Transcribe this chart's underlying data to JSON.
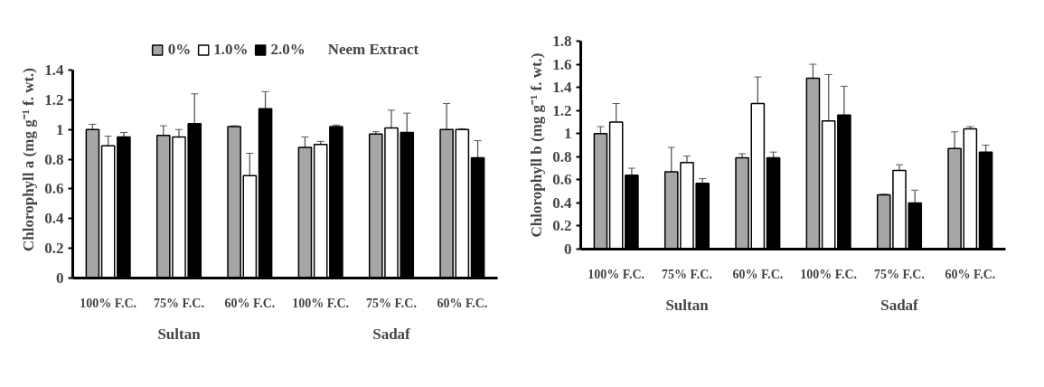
{
  "chart_data": [
    {
      "type": "bar",
      "ylabel": "Chlorophyll a (mg g⁻¹ f. wt.)",
      "categories": [
        "100% F.C.",
        "75% F.C.",
        "60% F.C.",
        "100% F.C.",
        "75% F.C.",
        "60% F.C."
      ],
      "annotations": [
        "Sultan",
        "Sadaf"
      ],
      "legend": "top",
      "legend_title": "Neem Extract",
      "ylim": [
        0,
        1.4
      ],
      "yticks": [
        0,
        0.2,
        0.4,
        0.6,
        0.8,
        1,
        1.2,
        1.4
      ],
      "grid": false,
      "series": [
        {
          "name": "0%",
          "color": "#a6a6a6",
          "values": [
            1.0,
            0.96,
            1.02,
            0.88,
            0.97,
            1.0
          ],
          "errors": [
            0.035,
            0.065,
            0.005,
            0.07,
            0.015,
            0.175
          ]
        },
        {
          "name": "1.0%",
          "color": "#ffffff",
          "values": [
            0.89,
            0.95,
            0.69,
            0.9,
            1.01,
            1.0
          ],
          "errors": [
            0.065,
            0.05,
            0.15,
            0.02,
            0.12,
            0.005
          ]
        },
        {
          "name": "2.0%",
          "color": "#000000",
          "values": [
            0.95,
            1.04,
            1.14,
            1.02,
            0.98,
            0.81
          ],
          "errors": [
            0.03,
            0.2,
            0.115,
            0.01,
            0.13,
            0.115
          ]
        }
      ]
    },
    {
      "type": "bar",
      "ylabel": "Chlorophyll b (mg g⁻¹ f. wt.)",
      "categories": [
        "100% F.C.",
        "75% F.C.",
        "60% F.C.",
        "100% F.C.",
        "75% F.C.",
        "60% F.C."
      ],
      "annotations": [
        "Sultan",
        "Sadaf"
      ],
      "ylim": [
        0,
        1.8
      ],
      "yticks": [
        0,
        0.2,
        0.4,
        0.6,
        0.8,
        1,
        1.2,
        1.4,
        1.6,
        1.8
      ],
      "grid": false,
      "series": [
        {
          "color": "#a6a6a6",
          "values": [
            1.0,
            0.67,
            0.79,
            1.48,
            0.47,
            0.87
          ],
          "errors": [
            0.06,
            0.21,
            0.035,
            0.12,
            0.005,
            0.145
          ]
        },
        {
          "color": "#ffffff",
          "values": [
            1.1,
            0.75,
            1.26,
            1.11,
            0.68,
            1.04
          ],
          "errors": [
            0.16,
            0.055,
            0.23,
            0.4,
            0.05,
            0.02
          ]
        },
        {
          "color": "#000000",
          "values": [
            0.64,
            0.57,
            0.79,
            1.16,
            0.4,
            0.84
          ],
          "errors": [
            0.06,
            0.04,
            0.05,
            0.25,
            0.11,
            0.06
          ]
        }
      ]
    }
  ]
}
